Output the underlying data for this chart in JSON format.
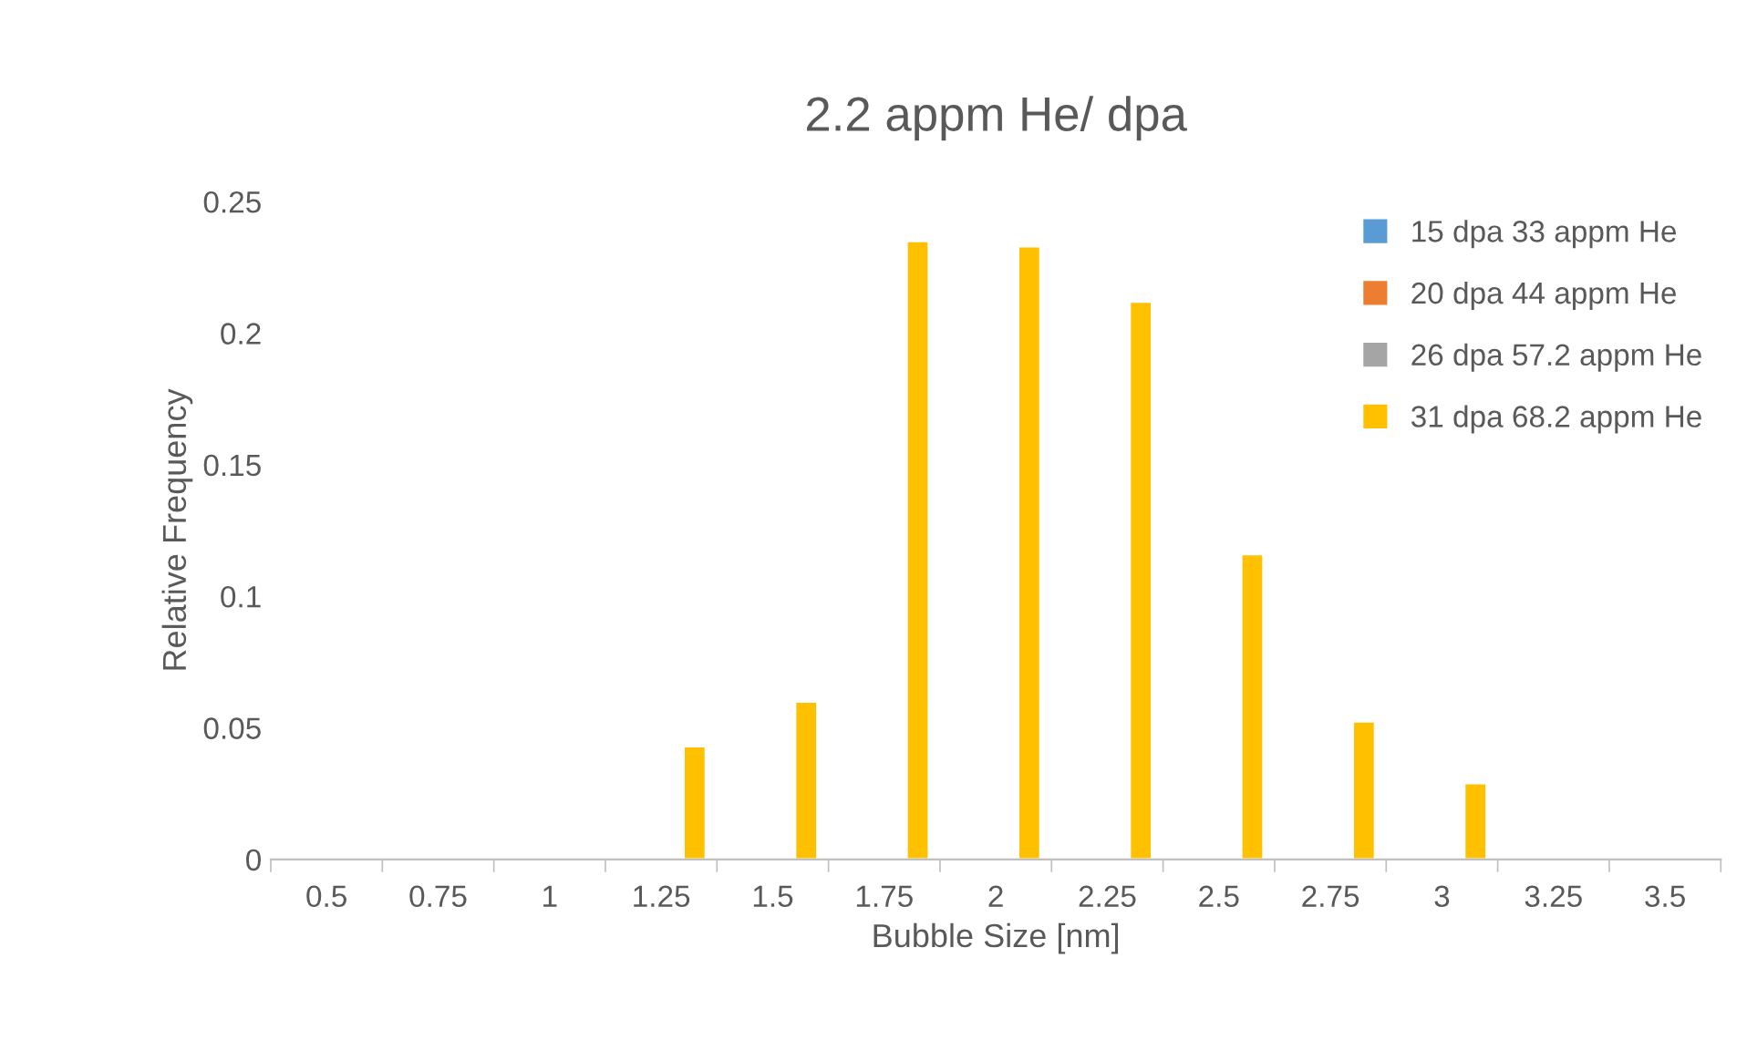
{
  "chart_data": {
    "type": "bar",
    "title": "2.2 appm He/ dpa",
    "xlabel": "Bubble Size [nm]",
    "ylabel": "Relative Frequency",
    "categories": [
      "0.5",
      "0.75",
      "1",
      "1.25",
      "1.5",
      "1.75",
      "2",
      "2.25",
      "2.5",
      "2.75",
      "3",
      "3.25",
      "3.5"
    ],
    "series": [
      {
        "name": "15 dpa 33 appm He",
        "color": "#5b9bd5",
        "values": [
          null,
          null,
          null,
          null,
          null,
          null,
          null,
          null,
          null,
          null,
          null,
          null,
          null
        ]
      },
      {
        "name": "20 dpa 44 appm He",
        "color": "#ed7d31",
        "values": [
          null,
          null,
          null,
          null,
          null,
          null,
          null,
          null,
          null,
          null,
          null,
          null,
          null
        ]
      },
      {
        "name": "26 dpa 57.2 appm He",
        "color": "#a5a5a5",
        "values": [
          null,
          null,
          null,
          null,
          null,
          null,
          null,
          null,
          null,
          null,
          null,
          null,
          null
        ]
      },
      {
        "name": "31 dpa 68.2 appm He",
        "color": "#ffc000",
        "values": [
          null,
          null,
          null,
          0.043,
          0.06,
          0.235,
          0.233,
          0.212,
          0.116,
          0.0525,
          0.029,
          null,
          null
        ]
      }
    ],
    "ylim": [
      0,
      0.25
    ],
    "yticks": [
      0,
      0.05,
      0.1,
      0.15,
      0.2,
      0.25
    ],
    "grid": false,
    "legend": "top right"
  }
}
